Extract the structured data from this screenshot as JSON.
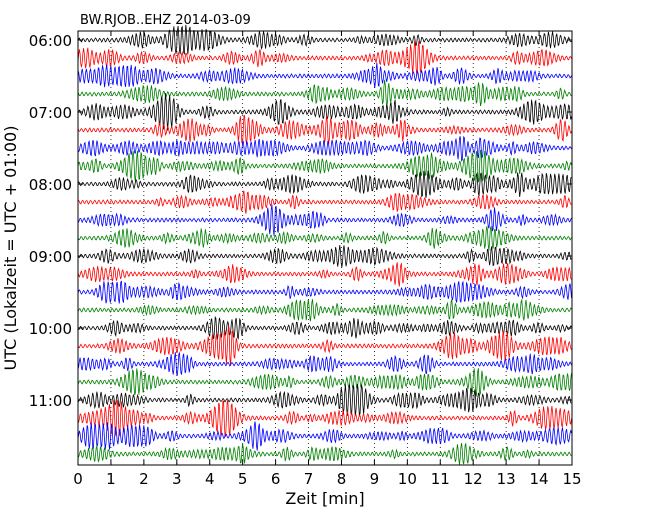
{
  "chart_data": {
    "type": "line",
    "title": "BW.RJOB..EHZ 2014-03-09",
    "xlabel": "Zeit  [min]",
    "ylabel": "UTC (Lokalzeit = UTC + 01:00)",
    "xlim": [
      0,
      15
    ],
    "x_ticks": [
      "0",
      "1",
      "2",
      "3",
      "4",
      "5",
      "6",
      "7",
      "8",
      "9",
      "10",
      "11",
      "12",
      "13",
      "14",
      "15"
    ],
    "y_ticks": [
      "06:00",
      "07:00",
      "08:00",
      "09:00",
      "10:00",
      "11:00"
    ],
    "grid": "vertical dotted lines at each minute",
    "trace_colors": [
      "#000000",
      "#ff0000",
      "#0000ff",
      "#008000"
    ],
    "trace_count": 24,
    "trace_interval_minutes": 15,
    "first_trace_start": "06:00"
  }
}
